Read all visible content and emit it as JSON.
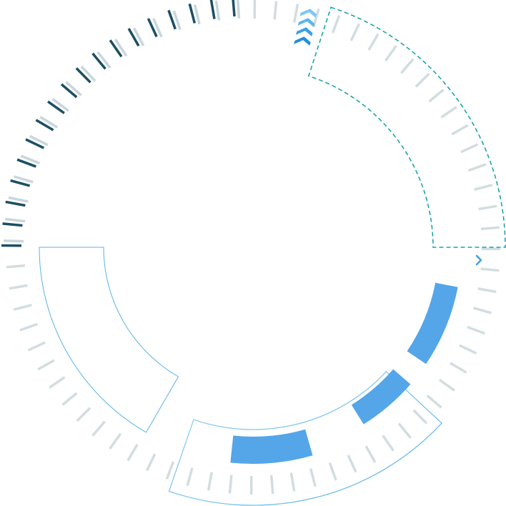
{
  "widget": {
    "ticks": {
      "count": 72,
      "active_count": 18
    },
    "colors": {
      "tick_active": "#1b4f65",
      "tick_shadow": "#c9d6dc",
      "tick_inactive": "#d2dde0",
      "accent_blue": "#54a6e8",
      "dashed_frame": "#1aa5ac",
      "thin_frame": "#58b4e6",
      "chevron_light": "#7cc7f4",
      "chevron_dark": "#1f8fdc"
    },
    "icons": [
      "chevron-stack-icon",
      "small-chevron-icon"
    ]
  }
}
